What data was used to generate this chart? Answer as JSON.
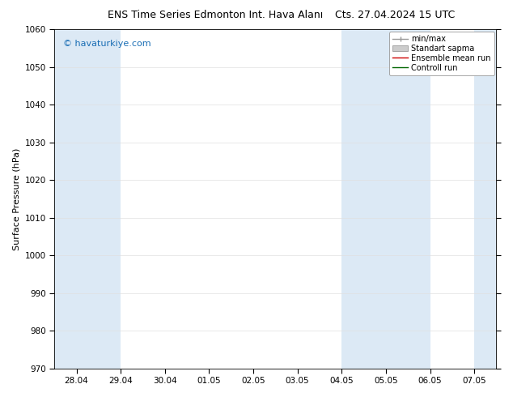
{
  "title_left": "ENS Time Series Edmonton Int. Hava Alanı",
  "title_right": "Cts. 27.04.2024 15 UTC",
  "ylabel": "Surface Pressure (hPa)",
  "ylim": [
    970,
    1060
  ],
  "yticks": [
    970,
    980,
    990,
    1000,
    1010,
    1020,
    1030,
    1040,
    1050,
    1060
  ],
  "x_labels": [
    "28.04",
    "29.04",
    "30.04",
    "01.05",
    "02.05",
    "03.05",
    "04.05",
    "05.05",
    "06.05",
    "07.05"
  ],
  "x_positions": [
    0,
    1,
    2,
    3,
    4,
    5,
    6,
    7,
    8,
    9
  ],
  "xlim": [
    -0.5,
    9.5
  ],
  "shaded_bands": [
    {
      "x_start": -0.5,
      "x_end": 1.0,
      "color": "#dce9f5"
    },
    {
      "x_start": 6.0,
      "x_end": 8.0,
      "color": "#dce9f5"
    },
    {
      "x_start": 9.0,
      "x_end": 9.5,
      "color": "#dce9f5"
    }
  ],
  "legend_items": [
    {
      "label": "min/max",
      "color": "#aaaaaa",
      "style": "minmax"
    },
    {
      "label": "Standart sapma",
      "color": "#cccccc",
      "style": "fill"
    },
    {
      "label": "Ensemble mean run",
      "color": "#ff0000",
      "style": "line"
    },
    {
      "label": "Controll run",
      "color": "#008000",
      "style": "line"
    }
  ],
  "watermark": "© havaturkiye.com",
  "watermark_color": "#1a6eb5",
  "background_color": "#ffffff",
  "plot_bg_color": "#ffffff",
  "title_fontsize": 9,
  "tick_fontsize": 7.5,
  "ylabel_fontsize": 8,
  "watermark_fontsize": 8
}
